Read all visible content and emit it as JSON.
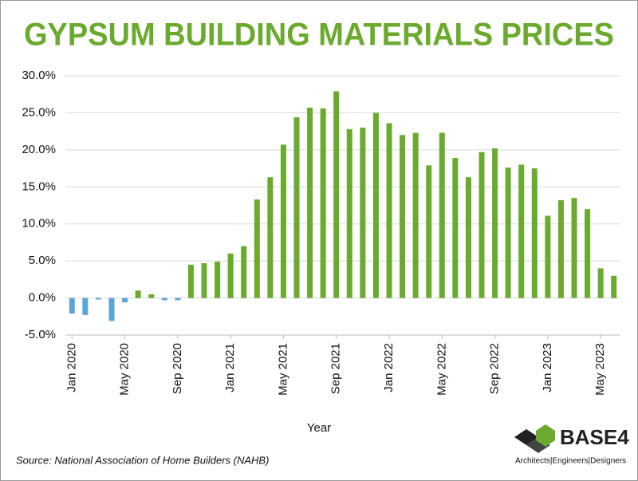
{
  "chart_data": {
    "type": "bar",
    "title": "GYPSUM BUILDING MATERIALS PRICES",
    "x_label": "Year",
    "source": "Source: National Association of Home Builders (NAHB)",
    "logo": {
      "name": "BASE4",
      "tagline": "Architects|Engineers|Designers"
    },
    "categories": [
      "Jan 2020",
      null,
      null,
      null,
      "May 2020",
      null,
      null,
      null,
      "Sep 2020",
      null,
      null,
      null,
      "Jan 2021",
      null,
      null,
      null,
      "May 2021",
      null,
      null,
      null,
      "Sep 2021",
      null,
      null,
      null,
      "Jan 2022",
      null,
      null,
      null,
      "May 2022",
      null,
      null,
      null,
      "Sep 2022",
      null,
      null,
      null,
      "Jan 2023",
      null,
      null,
      null,
      "May 2023",
      null
    ],
    "values": [
      -2.1,
      -2.3,
      -0.2,
      -3.1,
      -0.6,
      1.0,
      0.5,
      -0.3,
      -0.3,
      4.5,
      4.7,
      4.9,
      6.0,
      7.0,
      13.3,
      16.3,
      20.7,
      24.4,
      25.7,
      25.6,
      27.9,
      22.8,
      23.0,
      25.0,
      23.6,
      22.0,
      22.3,
      17.9,
      22.3,
      18.9,
      16.3,
      19.7,
      20.2,
      17.6,
      18.0,
      17.5,
      11.1,
      13.2,
      13.5,
      12.0,
      4.0,
      3.0
    ],
    "color": "#6aaa2c",
    "negative_color": "#5aa5d6",
    "ylim": [
      -5,
      30
    ],
    "yticks": [
      {
        "value": -5,
        "label": "-5.0%"
      },
      {
        "value": 0,
        "label": "0.0%"
      },
      {
        "value": 5,
        "label": "5.0%"
      },
      {
        "value": 10,
        "label": "10.0%"
      },
      {
        "value": 15,
        "label": "15.0%"
      },
      {
        "value": 20,
        "label": "20.0%"
      },
      {
        "value": 25,
        "label": "25.0%"
      },
      {
        "value": 30,
        "label": "30.0%"
      }
    ],
    "grid": true
  }
}
